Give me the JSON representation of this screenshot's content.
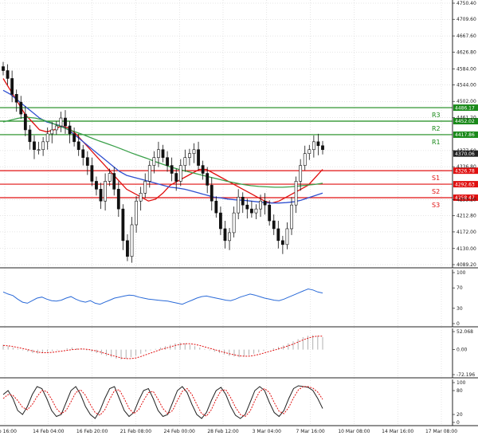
{
  "chart_data": {
    "type": "candlestick",
    "title": "",
    "x_ticks": [
      "Feb 16:00",
      "14 Feb 04:00",
      "16 Feb 20:00",
      "21 Feb 08:00",
      "24 Feb 00:00",
      "28 Feb 12:00",
      "3 Mar 04:00",
      "7 Mar 16:00",
      "10 Mar 08:00",
      "14 Mar 16:00",
      "17 Mar 08:00"
    ],
    "price_panel": {
      "ylim": [
        4089.2,
        4750.4
      ],
      "y_ticks": [
        "4750.40",
        "4709.60",
        "4667.60",
        "4626.80",
        "4584.00",
        "4544.00",
        "4502.00",
        "4461.20",
        "4377.60",
        "4336.80",
        "4253.20",
        "4212.80",
        "4172.00",
        "4130.00",
        "4089.20"
      ],
      "last_price_label": "4370.06",
      "close_path": [
        4580,
        4560,
        4520,
        4500,
        4470,
        4430,
        4400,
        4380,
        4380,
        4400,
        4420,
        4430,
        4440,
        4460,
        4440,
        4420,
        4400,
        4380,
        4360,
        4340,
        4300,
        4280,
        4250,
        4300,
        4320,
        4280,
        4230,
        4150,
        4110,
        4190,
        4250,
        4270,
        4300,
        4340,
        4360,
        4380,
        4360,
        4340,
        4320,
        4300,
        4340,
        4360,
        4370,
        4380,
        4340,
        4320,
        4290,
        4250,
        4220,
        4180,
        4150,
        4170,
        4220,
        4260,
        4240,
        4230,
        4220,
        4230,
        4250,
        4240,
        4200,
        4180,
        4150,
        4140,
        4180,
        4240,
        4300,
        4340,
        4370,
        4380,
        4400,
        4390,
        4380
      ],
      "levels": [
        {
          "name": "R3",
          "value": "4486.17",
          "color": "#1a8a1a"
        },
        {
          "name": "R2",
          "value": "4452.02",
          "color": "#1a8a1a"
        },
        {
          "name": "R1",
          "value": "4417.86",
          "color": "#1a8a1a"
        },
        {
          "name": "S1",
          "value": "4326.78",
          "color": "#e01010"
        },
        {
          "name": "S2",
          "value": "4292.63",
          "color": "#e01010"
        },
        {
          "name": "S3",
          "value": "4258.47",
          "color": "#e01010"
        }
      ],
      "moving_averages": [
        {
          "color": "#e01010",
          "path": [
            4560,
            4530,
            4500,
            4470,
            4450,
            4430,
            4425,
            4430,
            4440,
            4435,
            4420,
            4400,
            4380,
            4360,
            4340,
            4320,
            4300,
            4280,
            4270,
            4260,
            4250,
            4255,
            4270,
            4290,
            4300,
            4310,
            4320,
            4330,
            4330,
            4320,
            4310,
            4300,
            4290,
            4280,
            4270,
            4260,
            4250,
            4245,
            4250,
            4260,
            4270,
            4280,
            4290,
            4310,
            4330
          ]
        },
        {
          "color": "#3050d0",
          "path": [
            4530,
            4520,
            4505,
            4490,
            4475,
            4460,
            4450,
            4445,
            4440,
            4430,
            4415,
            4400,
            4385,
            4370,
            4355,
            4340,
            4325,
            4315,
            4310,
            4305,
            4300,
            4295,
            4290,
            4285,
            4283,
            4280,
            4275,
            4270,
            4265,
            4260,
            4258,
            4255,
            4253,
            4252,
            4250,
            4248,
            4246,
            4245,
            4245,
            4246,
            4248,
            4252,
            4258,
            4264,
            4270
          ]
        },
        {
          "color": "#3aa04a",
          "path": [
            4450,
            4455,
            4460,
            4462,
            4460,
            4455,
            4448,
            4440,
            4432,
            4425,
            4418,
            4410,
            4402,
            4395,
            4388,
            4380,
            4372,
            4365,
            4358,
            4350,
            4343,
            4336,
            4330,
            4325,
            4320,
            4315,
            4310,
            4305,
            4300,
            4296,
            4292,
            4289,
            4287,
            4286,
            4285,
            4285,
            4286,
            4288,
            4290,
            4292,
            4295
          ]
        }
      ]
    },
    "rsi_panel": {
      "ylim": [
        0,
        100
      ],
      "y_ticks": [
        "100",
        "70",
        "30",
        "0"
      ],
      "color": "#2a6ad8",
      "values": [
        62,
        58,
        55,
        48,
        42,
        40,
        45,
        50,
        52,
        48,
        45,
        44,
        46,
        50,
        53,
        48,
        44,
        42,
        45,
        40,
        38,
        42,
        46,
        50,
        52,
        54,
        56,
        55,
        52,
        50,
        48,
        47,
        46,
        45,
        44,
        42,
        40,
        38,
        42,
        46,
        50,
        53,
        54,
        52,
        50,
        48,
        46,
        45,
        48,
        52,
        55,
        58,
        56,
        53,
        50,
        48,
        46,
        45,
        48,
        52,
        56,
        60,
        64,
        68,
        66,
        62,
        60
      ]
    },
    "macd_panel": {
      "y_ticks": [
        "52.068",
        "0.00",
        "-72.196"
      ],
      "hist_color": "#b0b0b0",
      "signal_color": "#e01010",
      "histogram": [
        14,
        10,
        6,
        2,
        -2,
        -6,
        -10,
        -12,
        -10,
        -6,
        -4,
        -2,
        0,
        4,
        6,
        4,
        2,
        -2,
        -6,
        -10,
        -14,
        -18,
        -22,
        -26,
        -28,
        -26,
        -22,
        -18,
        -12,
        -6,
        -2,
        2,
        6,
        10,
        14,
        18,
        20,
        18,
        14,
        10,
        6,
        2,
        -2,
        -6,
        -10,
        -14,
        -18,
        -20,
        -22,
        -20,
        -16,
        -12,
        -8,
        -4,
        0,
        4,
        8,
        12,
        18,
        24,
        30,
        36,
        40,
        42,
        40,
        36
      ],
      "signal": [
        12,
        11,
        9,
        6,
        3,
        0,
        -4,
        -7,
        -9,
        -9,
        -8,
        -6,
        -4,
        -2,
        0,
        1,
        2,
        1,
        -1,
        -4,
        -8,
        -12,
        -16,
        -20,
        -24,
        -26,
        -26,
        -24,
        -20,
        -15,
        -10,
        -5,
        0,
        4,
        8,
        12,
        15,
        17,
        17,
        15,
        12,
        8,
        4,
        0,
        -4,
        -8,
        -12,
        -15,
        -18,
        -19,
        -19,
        -17,
        -14,
        -10,
        -6,
        -2,
        2,
        6,
        11,
        16,
        22,
        28,
        33,
        37,
        39,
        39
      ]
    },
    "stoch_panel": {
      "ylim": [
        0,
        100
      ],
      "y_ticks": [
        "100",
        "80",
        "20",
        "0"
      ],
      "k_color": "#222222",
      "d_color": "#e01010",
      "k": [
        70,
        80,
        60,
        30,
        20,
        40,
        70,
        90,
        85,
        60,
        30,
        15,
        20,
        50,
        80,
        90,
        70,
        40,
        20,
        10,
        30,
        60,
        85,
        90,
        60,
        30,
        15,
        25,
        55,
        80,
        85,
        60,
        30,
        15,
        20,
        50,
        80,
        90,
        75,
        45,
        20,
        10,
        25,
        55,
        80,
        88,
        70,
        40,
        18,
        10,
        20,
        50,
        80,
        90,
        80,
        50,
        25,
        15,
        30,
        60,
        85,
        92,
        90,
        88,
        80,
        60,
        35
      ],
      "d": [
        60,
        70,
        68,
        55,
        38,
        32,
        45,
        65,
        80,
        78,
        58,
        35,
        22,
        30,
        52,
        75,
        82,
        68,
        45,
        25,
        18,
        32,
        58,
        80,
        82,
        60,
        35,
        22,
        32,
        55,
        75,
        78,
        58,
        35,
        22,
        30,
        55,
        78,
        85,
        70,
        45,
        22,
        16,
        32,
        58,
        80,
        82,
        62,
        38,
        20,
        15,
        28,
        55,
        78,
        85,
        75,
        50,
        28,
        22,
        38,
        62,
        82,
        90,
        90,
        86,
        76,
        58
      ]
    }
  }
}
